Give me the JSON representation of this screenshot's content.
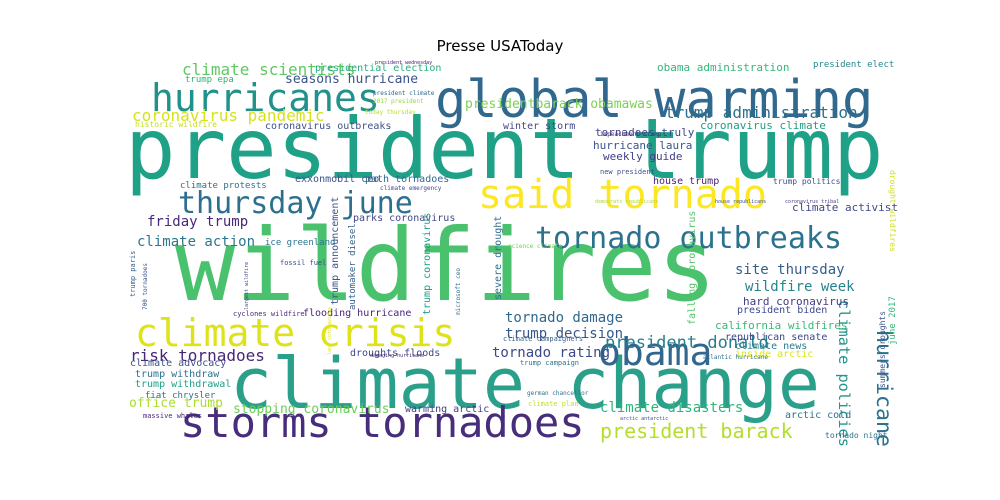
{
  "title": "Presse USAToday",
  "words": [
    {
      "text": "president trump",
      "color": "#1fa187"
    },
    {
      "text": "wildfires",
      "color": "#4ac16d"
    },
    {
      "text": "climate change",
      "color": "#2a9f8a"
    },
    {
      "text": "global warming",
      "color": "#30688e"
    },
    {
      "text": "storms tornadoes",
      "color": "#472d7b"
    },
    {
      "text": "said tornado",
      "color": "#fde725"
    },
    {
      "text": "hurricanes",
      "color": "#21918c"
    },
    {
      "text": "climate crisis",
      "color": "#dde318"
    },
    {
      "text": "obama",
      "color": "#31668e"
    },
    {
      "text": "tornado outbreaks",
      "color": "#2c728e"
    },
    {
      "text": "thursday june",
      "color": "#2d708e"
    },
    {
      "text": "hurricane",
      "color": "#2c728e"
    },
    {
      "text": "president barack",
      "color": "#b5de2b"
    },
    {
      "text": "coronavirus pandemic",
      "color": "#d8e219"
    },
    {
      "text": "climate scientists",
      "color": "#5ec962"
    },
    {
      "text": "trump administration",
      "color": "#2c728e"
    },
    {
      "text": "presidentbarack obamawas",
      "color": "#7ad151"
    },
    {
      "text": "seasons hurricane",
      "color": "#3b528b"
    },
    {
      "text": "obama administration",
      "color": "#35b779"
    },
    {
      "text": "climate policies",
      "color": "#1f968b"
    },
    {
      "text": "president donald",
      "color": "#277f8e"
    },
    {
      "text": "site thursday",
      "color": "#355f8d"
    },
    {
      "text": "wildfire week",
      "color": "#25848e"
    },
    {
      "text": "tornado damage",
      "color": "#31688e"
    },
    {
      "text": "trump decision",
      "color": "#39568c"
    },
    {
      "text": "tornado rating",
      "color": "#3e4989"
    },
    {
      "text": "risk tornadoes",
      "color": "#482677"
    },
    {
      "text": "friday trump",
      "color": "#482878"
    },
    {
      "text": "climate action",
      "color": "#2a788e"
    },
    {
      "text": "climate disasters",
      "color": "#2fb47c"
    },
    {
      "text": "office trump",
      "color": "#addc30"
    },
    {
      "text": "stopping coronavirus",
      "color": "#6ccd5a"
    },
    {
      "text": "climate activist",
      "color": "#3e4a89"
    },
    {
      "text": "hard coronavirus",
      "color": "#443983"
    },
    {
      "text": "california wildfires",
      "color": "#38b977"
    },
    {
      "text": "weekly guide",
      "color": "#433e85"
    },
    {
      "text": "hurricane laura",
      "color": "#3a548c"
    },
    {
      "text": "tornadoes truly",
      "color": "#414487"
    },
    {
      "text": "coronavirus climate",
      "color": "#1f9e89"
    },
    {
      "text": "president elect",
      "color": "#23898e"
    },
    {
      "text": "presidential election",
      "color": "#26ad81"
    },
    {
      "text": "winter storm",
      "color": "#3f4788"
    },
    {
      "text": "coronavirus outbreaks",
      "color": "#3b528b"
    },
    {
      "text": "trump epa",
      "color": "#2db27d"
    },
    {
      "text": "historic wildfire",
      "color": "#c2df23"
    },
    {
      "text": "president climate",
      "color": "#31688e"
    },
    {
      "text": "2017 president",
      "color": "#95d840"
    },
    {
      "text": "today thursday",
      "color": "#b8de29"
    },
    {
      "text": "impeachment trump",
      "color": "#472f7d"
    },
    {
      "text": "new president",
      "color": "#3b528b"
    },
    {
      "text": "president wednesday",
      "color": "#481b6d"
    },
    {
      "text": "drought wildfires",
      "color": "#d0e11c"
    },
    {
      "text": "exxonmobil ceo",
      "color": "#3b528b"
    },
    {
      "text": "path tornadoes",
      "color": "#31688e"
    },
    {
      "text": "climate protests",
      "color": "#2c728e"
    },
    {
      "text": "climate emergency",
      "color": "#3f4788"
    },
    {
      "text": "house trump",
      "color": "#482475"
    },
    {
      "text": "trump politics",
      "color": "#3b528b"
    },
    {
      "text": "democrats republicans",
      "color": "#a8db34"
    },
    {
      "text": "house republicans",
      "color": "#39568c"
    },
    {
      "text": "coronavirus tribal",
      "color": "#443a83"
    },
    {
      "text": "parks coronavirus",
      "color": "#3f4889"
    },
    {
      "text": "ice greenland",
      "color": "#2a768e"
    },
    {
      "text": "fossil fuel",
      "color": "#3e4c8a"
    },
    {
      "text": "science climate",
      "color": "#6ece58"
    },
    {
      "text": "trump announcement",
      "color": "#3b528b"
    },
    {
      "text": "automaker diesel",
      "color": "#355f8d"
    },
    {
      "text": "trump coronavirus",
      "color": "#1e9c89"
    },
    {
      "text": "microsoft ceo",
      "color": "#2c718e"
    },
    {
      "text": "severe drought",
      "color": "#2d708e"
    },
    {
      "text": "falling coronavirus",
      "color": "#52c569"
    },
    {
      "text": "president biden",
      "color": "#3e4a89"
    },
    {
      "text": "june 2017",
      "color": "#35b779"
    },
    {
      "text": "trump paris",
      "color": "#355f8d"
    },
    {
      "text": "700 tornadoes",
      "color": "#39568c"
    },
    {
      "text": "largest wildfire",
      "color": "#3f4889"
    },
    {
      "text": "cyclones wildfire",
      "color": "#482878"
    },
    {
      "text": "flooding hurricane",
      "color": "#482677"
    },
    {
      "text": "land coronavirus",
      "color": "#e5e419"
    },
    {
      "text": "climate advocacy",
      "color": "#3b528b"
    },
    {
      "text": "trump withdraw",
      "color": "#2c728e"
    },
    {
      "text": "trump withdrawal",
      "color": "#1fa187"
    },
    {
      "text": "fiat chrysler",
      "color": "#2c728e"
    },
    {
      "text": "massive whales",
      "color": "#482878"
    },
    {
      "text": "droughts floods",
      "color": "#3f4788"
    },
    {
      "text": "climate campaigners",
      "color": "#355f8d"
    },
    {
      "text": "trump campaign",
      "color": "#2c728e"
    },
    {
      "text": "damaging hurricane",
      "color": "#482878"
    },
    {
      "text": "warming arctic",
      "color": "#433e85"
    },
    {
      "text": "climate plan",
      "color": "#c2df23"
    },
    {
      "text": "german chancellor",
      "color": "#2c728e"
    },
    {
      "text": "arctic antarctic",
      "color": "#3b528b"
    },
    {
      "text": "climate news",
      "color": "#277f8e"
    },
    {
      "text": "inside arctic",
      "color": "#dde318"
    },
    {
      "text": "republican senate",
      "color": "#3f4788"
    },
    {
      "text": "atlantic hurricane",
      "color": "#2c728e"
    },
    {
      "text": "arctic cold",
      "color": "#2c728e"
    },
    {
      "text": "tornado night",
      "color": "#2c728e"
    },
    {
      "text": "summers droughts",
      "color": "#3b528b"
    }
  ]
}
